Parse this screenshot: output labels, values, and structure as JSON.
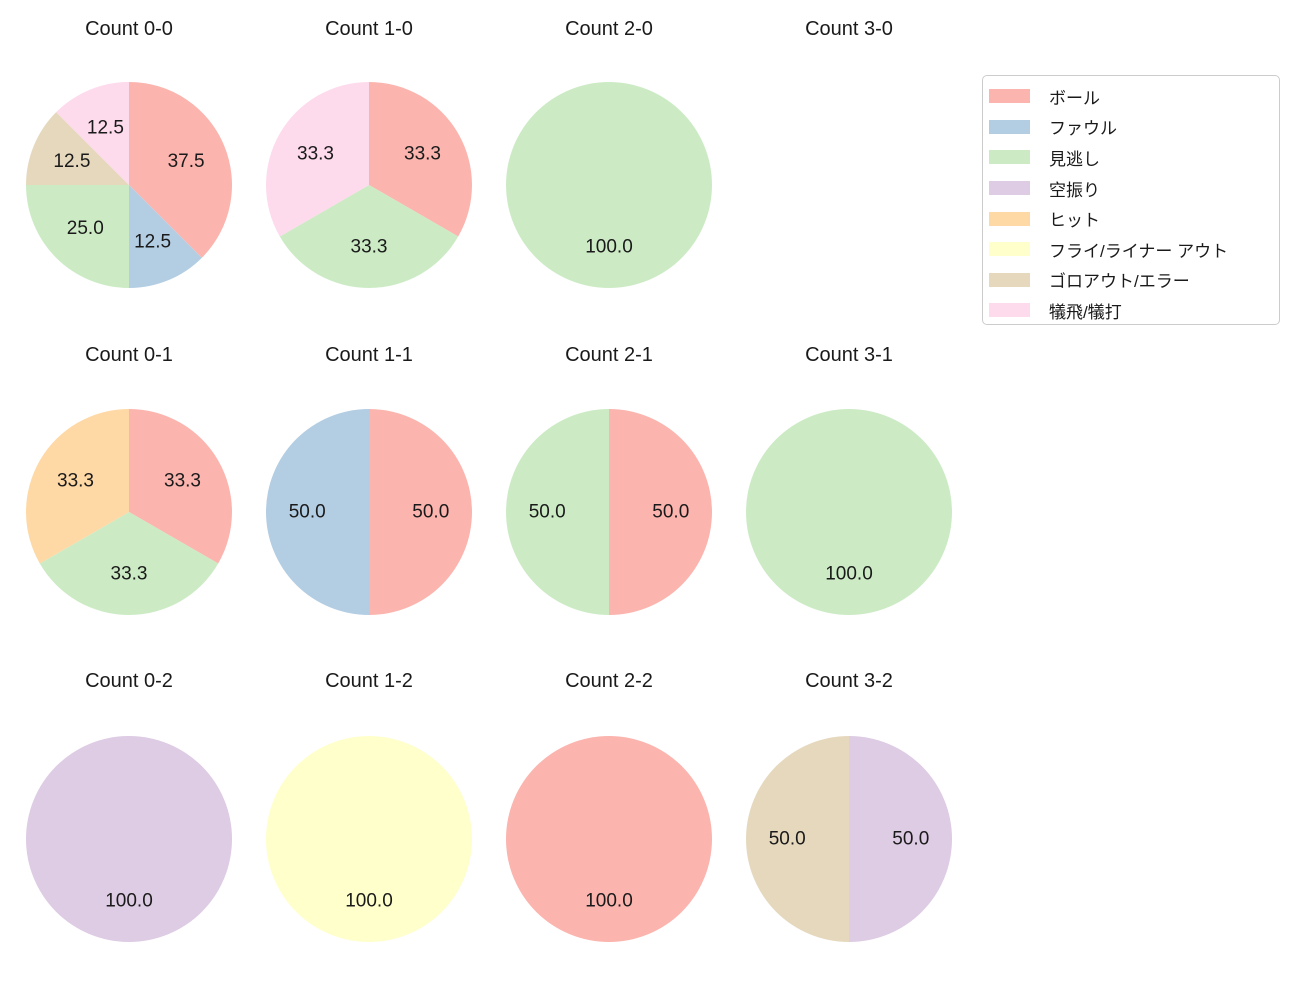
{
  "figure": {
    "background": "#ffffff"
  },
  "legend": {
    "entries": [
      {
        "label": "ボール",
        "color": "#fbb4ae"
      },
      {
        "label": "ファウル",
        "color": "#b3cde3"
      },
      {
        "label": "見逃し",
        "color": "#ccebc5"
      },
      {
        "label": "空振り",
        "color": "#decbe4"
      },
      {
        "label": "ヒット",
        "color": "#fed9a6"
      },
      {
        "label": "フライ/ライナー アウト",
        "color": "#ffffcc"
      },
      {
        "label": "ゴロアウト/エラー",
        "color": "#e5d8bd"
      },
      {
        "label": "犠飛/犠打",
        "color": "#fddaec"
      }
    ]
  },
  "chart_data": {
    "type": "pie",
    "layout": {
      "grid_rows": 3,
      "grid_cols": 4,
      "start_angle_deg": 90,
      "direction": "clockwise",
      "pct_label_radius_fraction": 0.6,
      "legend_position": "upper right"
    },
    "pies": [
      {
        "title": "Count 0-0",
        "slices": [
          {
            "category": "ボール",
            "pct": 37.5,
            "label": "37.5"
          },
          {
            "category": "ファウル",
            "pct": 12.5,
            "label": "12.5"
          },
          {
            "category": "見逃し",
            "pct": 25.0,
            "label": "25.0"
          },
          {
            "category": "ゴロアウト/エラー",
            "pct": 12.5,
            "label": "12.5"
          },
          {
            "category": "犠飛/犠打",
            "pct": 12.5,
            "label": "12.5"
          }
        ]
      },
      {
        "title": "Count 1-0",
        "slices": [
          {
            "category": "ボール",
            "pct": 33.3,
            "label": "33.3"
          },
          {
            "category": "見逃し",
            "pct": 33.3,
            "label": "33.3"
          },
          {
            "category": "犠飛/犠打",
            "pct": 33.3,
            "label": "33.3"
          }
        ]
      },
      {
        "title": "Count 2-0",
        "slices": [
          {
            "category": "見逃し",
            "pct": 100.0,
            "label": "100.0"
          }
        ]
      },
      {
        "title": "Count 3-0",
        "slices": []
      },
      {
        "title": "Count 0-1",
        "slices": [
          {
            "category": "ボール",
            "pct": 33.3,
            "label": "33.3"
          },
          {
            "category": "見逃し",
            "pct": 33.3,
            "label": "33.3"
          },
          {
            "category": "ヒット",
            "pct": 33.3,
            "label": "33.3"
          }
        ]
      },
      {
        "title": "Count 1-1",
        "slices": [
          {
            "category": "ボール",
            "pct": 50.0,
            "label": "50.0"
          },
          {
            "category": "ファウル",
            "pct": 50.0,
            "label": "50.0"
          }
        ]
      },
      {
        "title": "Count 2-1",
        "slices": [
          {
            "category": "ボール",
            "pct": 50.0,
            "label": "50.0"
          },
          {
            "category": "見逃し",
            "pct": 50.0,
            "label": "50.0"
          }
        ]
      },
      {
        "title": "Count 3-1",
        "slices": [
          {
            "category": "見逃し",
            "pct": 100.0,
            "label": "100.0"
          }
        ]
      },
      {
        "title": "Count 0-2",
        "slices": [
          {
            "category": "空振り",
            "pct": 100.0,
            "label": "100.0"
          }
        ]
      },
      {
        "title": "Count 1-2",
        "slices": [
          {
            "category": "フライ/ライナー アウト",
            "pct": 100.0,
            "label": "100.0"
          }
        ]
      },
      {
        "title": "Count 2-2",
        "slices": [
          {
            "category": "ボール",
            "pct": 100.0,
            "label": "100.0"
          }
        ]
      },
      {
        "title": "Count 3-2",
        "slices": [
          {
            "category": "空振り",
            "pct": 50.0,
            "label": "50.0"
          },
          {
            "category": "ゴロアウト/エラー",
            "pct": 50.0,
            "label": "50.0"
          }
        ]
      }
    ]
  }
}
